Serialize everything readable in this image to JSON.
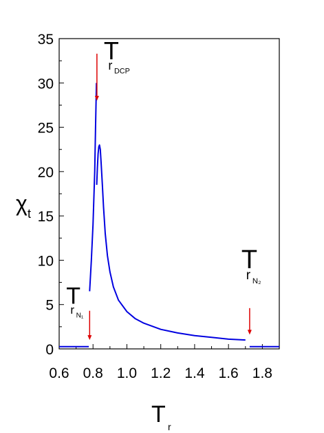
{
  "chart_data": {
    "type": "line",
    "title": "",
    "xlabel": "T",
    "xlabel_sub": "r",
    "ylabel": "χ",
    "ylabel_sub": "t",
    "xlim": [
      0.6,
      1.9
    ],
    "ylim": [
      0,
      35
    ],
    "x_ticks": [
      "0.6",
      "0.8",
      "1.0",
      "1.2",
      "1.4",
      "1.6",
      "1.8"
    ],
    "y_ticks": [
      "0",
      "5",
      "10",
      "15",
      "20",
      "25",
      "30",
      "35"
    ],
    "grid": false,
    "legend": "none",
    "series": [
      {
        "color": "#0000e0",
        "segments": [
          {
            "x": [
              0.6,
              0.775
            ],
            "y": [
              0.25,
              0.25
            ]
          },
          {
            "x": [
              0.78,
              0.79,
              0.8,
              0.81,
              0.815,
              0.82
            ],
            "y": [
              6.5,
              10,
              14,
              20,
              25,
              30
            ]
          },
          {
            "x": [
              0.822,
              0.826,
              0.83,
              0.834,
              0.838,
              0.843,
              0.848,
              0.855,
              0.862,
              0.872,
              0.885,
              0.9,
              0.92,
              0.95,
              1.0,
              1.05,
              1.1,
              1.2,
              1.3,
              1.4,
              1.5,
              1.6,
              1.7
            ],
            "y": [
              18.5,
              20.5,
              22.0,
              22.8,
              23.0,
              22.5,
              21.0,
              18.5,
              16.0,
              13.0,
              10.5,
              8.7,
              7.0,
              5.5,
              4.2,
              3.4,
              2.9,
              2.2,
              1.8,
              1.5,
              1.3,
              1.1,
              1.0
            ]
          },
          {
            "x": [
              1.725,
              1.9
            ],
            "y": [
              0.25,
              0.25
            ]
          }
        ]
      }
    ],
    "annotations": [
      {
        "label": "T",
        "sub": "r",
        "subsub": "DCP",
        "arrow_x": 0.823,
        "arrow_from_y": 33.3,
        "arrow_to_y": 28.0,
        "arrow_color": "#dd0000"
      },
      {
        "label": "T",
        "sub": "r",
        "subsub": "N₁",
        "arrow_x": 0.78,
        "arrow_from_y": 4.3,
        "arrow_to_y": 1.0,
        "arrow_color": "#dd0000"
      },
      {
        "label": "T",
        "sub": "r",
        "subsub": "N₂",
        "arrow_x": 1.725,
        "arrow_from_y": 4.6,
        "arrow_to_y": 1.6,
        "arrow_color": "#dd0000"
      }
    ]
  }
}
